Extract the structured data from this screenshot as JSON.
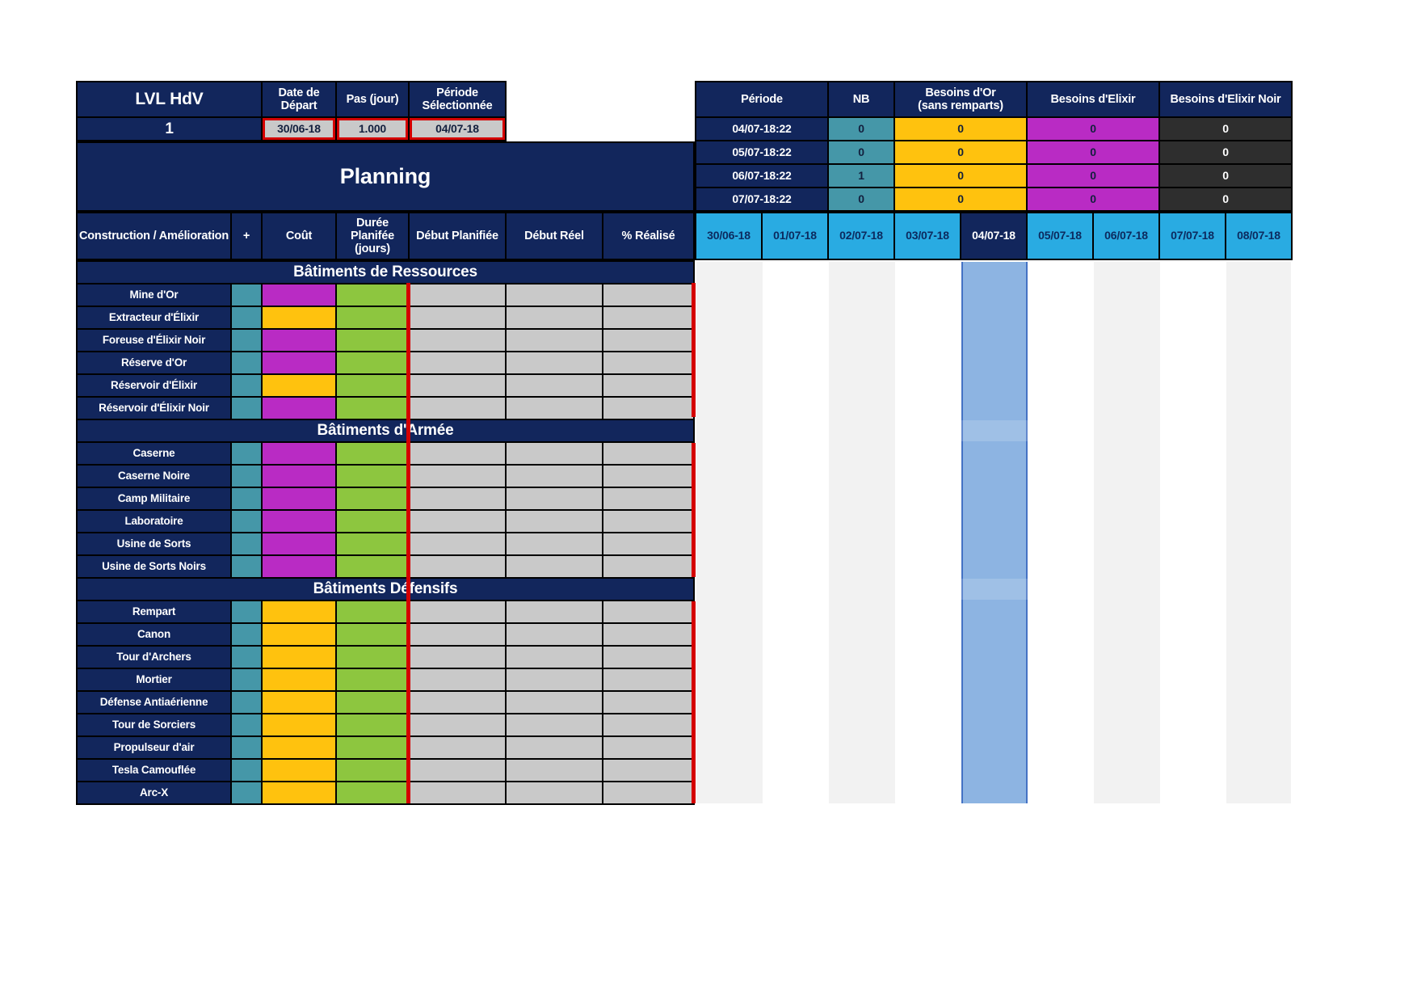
{
  "colors": {
    "navy": "#12265c",
    "light_blue": "#29abe2",
    "teal": "#4597a8",
    "yellow": "#ffc20e",
    "magenta": "#b92bc4",
    "green": "#8dc63f",
    "gray_cell": "#c9c9c9",
    "dark_cell": "#2e2e2e",
    "red": "#d40000",
    "highlight": "#8db4e2",
    "highlight_border": "#4472c4",
    "stripe": "#f2f2f2",
    "grid_line": "#000000"
  },
  "param_table": {
    "headers": {
      "lvl": "LVL HdV",
      "date_depart": "Date de\nDépart",
      "pas_jour": "Pas (jour)",
      "periode_selectionnee": "Période\nSélectionnée"
    },
    "values": {
      "lvl": "1",
      "date_depart": "30/06-18",
      "pas_jour": "1.000",
      "periode_selectionnee": "04/07-18"
    }
  },
  "banner": {
    "title": "Planning"
  },
  "grid": {
    "columns": [
      "Construction / Amélioration",
      "+",
      "Coût",
      "Durée\nPlanifée\n(jours)",
      "Début Planifiée",
      "Début Réel",
      "% Réalisé"
    ],
    "sections": [
      {
        "title": "Bâtiments de Ressources",
        "rows": [
          {
            "label": "Mine d'Or",
            "cost": "magenta"
          },
          {
            "label": "Extracteur d'Élixir",
            "cost": "yellow"
          },
          {
            "label": "Foreuse d'Élixir Noir",
            "cost": "magenta"
          },
          {
            "label": "Réserve d'Or",
            "cost": "magenta"
          },
          {
            "label": "Réservoir d'Élixir",
            "cost": "yellow"
          },
          {
            "label": "Réservoir d'Élixir Noir",
            "cost": "magenta"
          }
        ]
      },
      {
        "title": "Bâtiments d'Armée",
        "rows": [
          {
            "label": "Caserne",
            "cost": "magenta"
          },
          {
            "label": "Caserne Noire",
            "cost": "magenta"
          },
          {
            "label": "Camp Militaire",
            "cost": "magenta"
          },
          {
            "label": "Laboratoire",
            "cost": "magenta"
          },
          {
            "label": "Usine de Sorts",
            "cost": "magenta"
          },
          {
            "label": "Usine de Sorts Noirs",
            "cost": "magenta"
          }
        ]
      },
      {
        "title": "Bâtiments Défensifs",
        "rows": [
          {
            "label": "Rempart",
            "cost": "yellow"
          },
          {
            "label": "Canon",
            "cost": "yellow"
          },
          {
            "label": "Tour d'Archers",
            "cost": "yellow"
          },
          {
            "label": "Mortier",
            "cost": "yellow"
          },
          {
            "label": "Défense Antiaérienne",
            "cost": "yellow"
          },
          {
            "label": "Tour de Sorciers",
            "cost": "yellow"
          },
          {
            "label": "Propulseur d'air",
            "cost": "yellow"
          },
          {
            "label": "Tesla Camouflée",
            "cost": "yellow"
          },
          {
            "label": "Arc-X",
            "cost": "yellow"
          }
        ]
      }
    ]
  },
  "timeline": {
    "dates": [
      "30/06-18",
      "01/07-18",
      "02/07-18",
      "03/07-18",
      "04/07-18",
      "05/07-18",
      "06/07-18",
      "07/07-18",
      "08/07-18"
    ],
    "selected": "04/07-18"
  },
  "summary_table": {
    "headers": {
      "periode": "Période",
      "nb": "NB",
      "or": "Besoins d'Or\n(sans remparts)",
      "elixir": "Besoins d'Elixir",
      "elixir_noir": "Besoins d'Elixir Noir"
    },
    "rows": [
      {
        "periode": "04/07-18:22",
        "nb": "0",
        "or": "0",
        "elixir": "0",
        "elixir_noir": "0"
      },
      {
        "periode": "05/07-18:22",
        "nb": "0",
        "or": "0",
        "elixir": "0",
        "elixir_noir": "0"
      },
      {
        "periode": "06/07-18:22",
        "nb": "1",
        "or": "0",
        "elixir": "0",
        "elixir_noir": "0"
      },
      {
        "periode": "07/07-18:22",
        "nb": "0",
        "or": "0",
        "elixir": "0",
        "elixir_noir": "0"
      }
    ]
  }
}
